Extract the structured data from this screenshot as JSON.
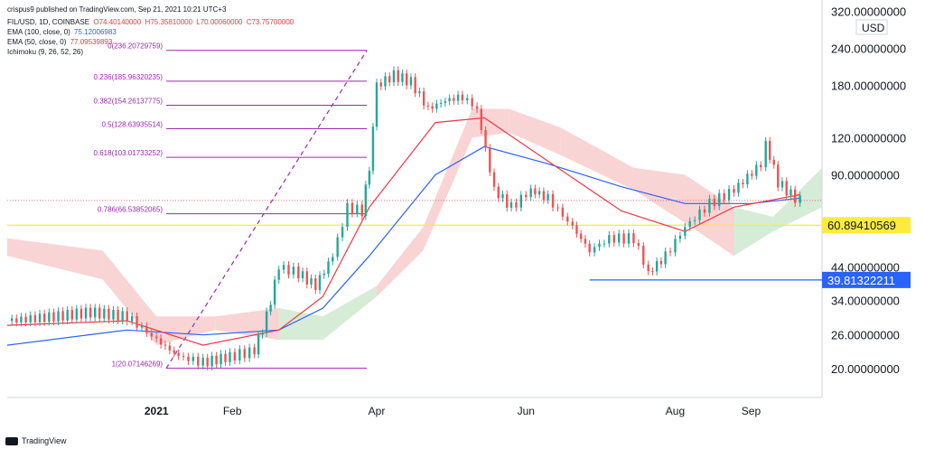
{
  "header": {
    "publisher": "crispus9 published on TradingView.com, Sep 21, 2021 10:21 UTC+3",
    "symbol_line": {
      "symbol": "FIL/USD, 1D, COINBASE",
      "open": "O74.40140000",
      "high": "H75.35810000",
      "low": "L70.00060000",
      "close": "C73.75700000"
    },
    "ema100": {
      "label": "EMA (100, close, 0)",
      "value": "75.12006983",
      "color": "#2962ff"
    },
    "ema50": {
      "label": "EMA (50, close, 0)",
      "value": "77.09539893",
      "color": "#f23645"
    },
    "ichimoku": {
      "label": "Ichimoku (9, 26, 52, 26)"
    }
  },
  "footer": {
    "brand": "TradingView"
  },
  "chart_data": {
    "type": "line",
    "title": "FIL/USD, 1D, COINBASE",
    "currency": "USD",
    "scale": "log",
    "ylim": [
      16,
      330
    ],
    "y_ticks": [
      "320.00000000",
      "240.00000000",
      "180.00000000",
      "120.00000000",
      "90.00000000",
      "44.00000000",
      "34.00000000",
      "26.00000000",
      "20.00000000"
    ],
    "y_tick_values": [
      320,
      240,
      180,
      120,
      90,
      44,
      34,
      26,
      20
    ],
    "x_ticks": [
      "2021",
      "Feb",
      "Apr",
      "Jun",
      "Aug",
      "Sep"
    ],
    "x_tick_dates": [
      "2021-01-01",
      "2021-02-01",
      "2021-04-01",
      "2021-06-01",
      "2021-08-01",
      "2021-09-01"
    ],
    "x_range": [
      "2020-11-01",
      "2021-09-30"
    ],
    "price_path": [
      [
        "2020-11-01",
        29
      ],
      [
        "2020-11-20",
        30
      ],
      [
        "2020-12-05",
        31
      ],
      [
        "2020-12-20",
        30
      ],
      [
        "2021-01-01",
        25
      ],
      [
        "2021-01-10",
        22
      ],
      [
        "2021-01-20",
        21
      ],
      [
        "2021-01-31",
        22
      ],
      [
        "2021-02-10",
        23
      ],
      [
        "2021-02-15",
        30
      ],
      [
        "2021-02-20",
        44
      ],
      [
        "2021-02-28",
        42
      ],
      [
        "2021-03-07",
        38
      ],
      [
        "2021-03-14",
        48
      ],
      [
        "2021-03-20",
        70
      ],
      [
        "2021-03-26",
        68
      ],
      [
        "2021-03-29",
        95
      ],
      [
        "2021-04-01",
        180
      ],
      [
        "2021-04-08",
        195
      ],
      [
        "2021-04-15",
        185
      ],
      [
        "2021-04-22",
        150
      ],
      [
        "2021-04-29",
        160
      ],
      [
        "2021-05-06",
        165
      ],
      [
        "2021-05-12",
        150
      ],
      [
        "2021-05-19",
        80
      ],
      [
        "2021-05-26",
        70
      ],
      [
        "2021-06-03",
        80
      ],
      [
        "2021-06-10",
        75
      ],
      [
        "2021-06-20",
        60
      ],
      [
        "2021-06-27",
        50
      ],
      [
        "2021-07-05",
        55
      ],
      [
        "2021-07-15",
        55
      ],
      [
        "2021-07-21",
        42
      ],
      [
        "2021-07-28",
        48
      ],
      [
        "2021-08-05",
        60
      ],
      [
        "2021-08-15",
        72
      ],
      [
        "2021-08-25",
        80
      ],
      [
        "2021-09-05",
        98
      ],
      [
        "2021-09-07",
        115
      ],
      [
        "2021-09-12",
        85
      ],
      [
        "2021-09-19",
        75
      ],
      [
        "2021-09-21",
        73.757
      ]
    ],
    "series": [
      {
        "name": "EMA (100, close, 0)",
        "color": "#2962ff",
        "last": 75.12006983,
        "points": [
          [
            "2020-11-01",
            24
          ],
          [
            "2020-12-20",
            27
          ],
          [
            "2021-01-20",
            26
          ],
          [
            "2021-02-20",
            27
          ],
          [
            "2021-03-10",
            32
          ],
          [
            "2021-03-29",
            48
          ],
          [
            "2021-04-25",
            90
          ],
          [
            "2021-05-15",
            112
          ],
          [
            "2021-06-10",
            98
          ],
          [
            "2021-07-10",
            82
          ],
          [
            "2021-08-05",
            72
          ],
          [
            "2021-09-01",
            72
          ],
          [
            "2021-09-21",
            75.12
          ]
        ]
      },
      {
        "name": "EMA (50, close, 0)",
        "color": "#f23645",
        "last": 77.09539893,
        "points": [
          [
            "2020-11-01",
            28
          ],
          [
            "2020-12-20",
            29
          ],
          [
            "2021-01-20",
            24
          ],
          [
            "2021-02-20",
            27
          ],
          [
            "2021-03-10",
            35
          ],
          [
            "2021-03-29",
            70
          ],
          [
            "2021-04-25",
            135
          ],
          [
            "2021-05-15",
            140
          ],
          [
            "2021-06-10",
            100
          ],
          [
            "2021-07-10",
            68
          ],
          [
            "2021-08-05",
            58
          ],
          [
            "2021-08-25",
            70
          ],
          [
            "2021-09-21",
            77.1
          ]
        ]
      }
    ],
    "fibonacci": {
      "start_date": "2021-01-05",
      "end_date": "2021-03-28",
      "levels": [
        {
          "label": "0(236.20729759)",
          "value": 236.20729759
        },
        {
          "label": "0.236(185.96320235)",
          "value": 185.96320235
        },
        {
          "label": "0.382(154.26137775)",
          "value": 154.26137775
        },
        {
          "label": "0.5(128.63935514)",
          "value": 128.63935514
        },
        {
          "label": "0.618(103.01733252)",
          "value": 103.01733252
        },
        {
          "label": "0.786(66.53852065)",
          "value": 66.53852065
        },
        {
          "label": "1(20.07146269)",
          "value": 20.07146269
        }
      ],
      "color": "#9c27b0"
    },
    "horizontal_lines": [
      {
        "value": 60.89410569,
        "label": "60.89410569",
        "color": "#ffeb3b",
        "label_bg": "#ffeb3b",
        "label_fg": "#131722"
      },
      {
        "value": 39.81322211,
        "label": "39.81322211",
        "color": "#2962ff",
        "label_bg": "#2962ff",
        "label_fg": "#ffffff",
        "start_date": "2021-06-27"
      }
    ],
    "ichimoku_cloud": {
      "color_bear": "#f7c5c5",
      "color_bull": "#c8e6c9",
      "upper": [
        [
          "2020-11-01",
          55
        ],
        [
          "2020-12-10",
          50
        ],
        [
          "2021-01-01",
          30
        ],
        [
          "2021-01-25",
          30
        ],
        [
          "2021-02-20",
          32
        ],
        [
          "2021-03-10",
          30
        ],
        [
          "2021-04-01",
          38
        ],
        [
          "2021-04-20",
          60
        ],
        [
          "2021-05-10",
          150
        ],
        [
          "2021-05-25",
          150
        ],
        [
          "2021-06-15",
          130
        ],
        [
          "2021-07-15",
          95
        ],
        [
          "2021-08-05",
          90
        ],
        [
          "2021-08-25",
          70
        ],
        [
          "2021-09-10",
          65
        ],
        [
          "2021-09-30",
          95
        ]
      ],
      "lower": [
        [
          "2020-11-01",
          48
        ],
        [
          "2020-12-10",
          40
        ],
        [
          "2021-01-01",
          24
        ],
        [
          "2021-01-25",
          27
        ],
        [
          "2021-02-20",
          25
        ],
        [
          "2021-03-10",
          25
        ],
        [
          "2021-04-01",
          35
        ],
        [
          "2021-04-20",
          50
        ],
        [
          "2021-05-10",
          120
        ],
        [
          "2021-05-25",
          125
        ],
        [
          "2021-06-15",
          105
        ],
        [
          "2021-07-15",
          80
        ],
        [
          "2021-08-05",
          62
        ],
        [
          "2021-08-25",
          48
        ],
        [
          "2021-09-10",
          58
        ],
        [
          "2021-09-30",
          70
        ]
      ]
    },
    "last_price": 73.757
  }
}
